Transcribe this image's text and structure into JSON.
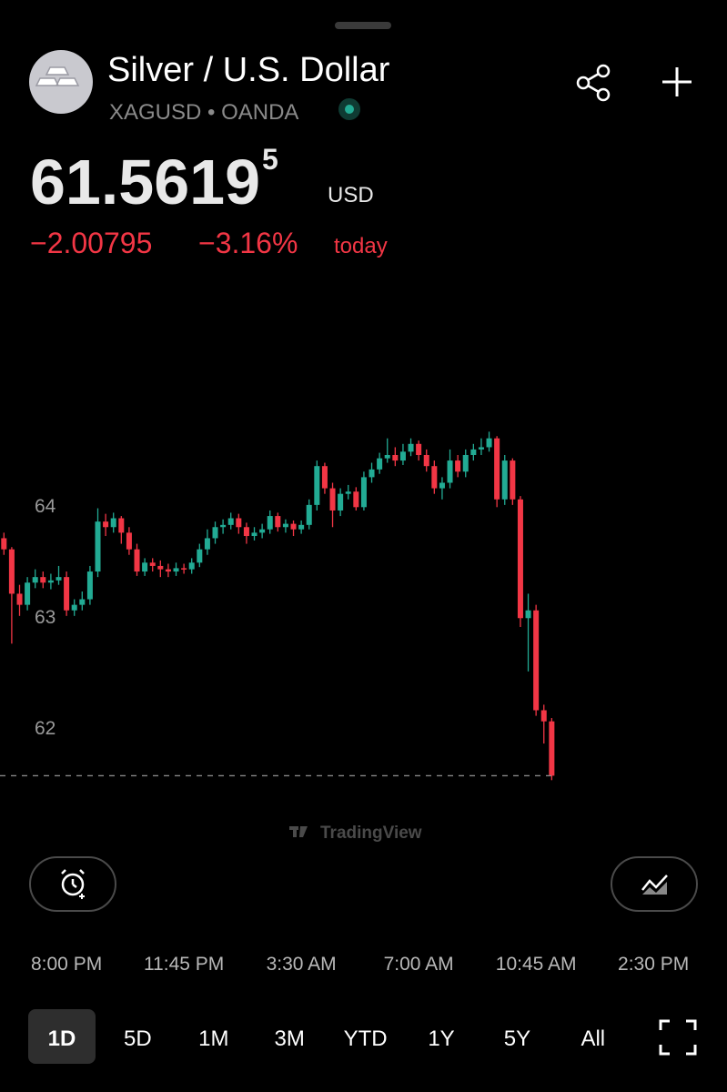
{
  "header": {
    "title": "Silver / U.S. Dollar",
    "symbol": "XAGUSD • OANDA",
    "price": "61.5619",
    "price_extra_digit": "5",
    "currency": "USD",
    "change": "−2.00795",
    "change_percent": "−3.16%",
    "period": "today"
  },
  "chart_data": {
    "type": "candlestick",
    "up_color": "#22ab94",
    "down_color": "#f23645",
    "categories": [
      null,
      null,
      null,
      null,
      null,
      null,
      null,
      null,
      null,
      null,
      null,
      null,
      null,
      null,
      null,
      null,
      null,
      null,
      null,
      null,
      null,
      null,
      null,
      null,
      null,
      null,
      null,
      null,
      null,
      null,
      null,
      null,
      null,
      null,
      null,
      null,
      null,
      null,
      null,
      null,
      null,
      null,
      null,
      null,
      null,
      null,
      null,
      null,
      null,
      null,
      null,
      null,
      null,
      null,
      null,
      null,
      null,
      null,
      null,
      null,
      null,
      null,
      null,
      null,
      null,
      null,
      null,
      null,
      null,
      null,
      null
    ],
    "ohlc": [
      [
        63.7,
        63.75,
        63.55,
        63.6
      ],
      [
        63.6,
        63.62,
        62.75,
        63.2
      ],
      [
        63.2,
        63.28,
        63.0,
        63.1
      ],
      [
        63.1,
        63.35,
        63.05,
        63.3
      ],
      [
        63.3,
        63.42,
        63.25,
        63.35
      ],
      [
        63.35,
        63.4,
        63.25,
        63.3
      ],
      [
        63.3,
        63.38,
        63.24,
        63.32
      ],
      [
        63.32,
        63.45,
        63.28,
        63.35
      ],
      [
        63.35,
        63.4,
        63.0,
        63.05
      ],
      [
        63.05,
        63.15,
        63.0,
        63.1
      ],
      [
        63.1,
        63.22,
        63.05,
        63.15
      ],
      [
        63.15,
        63.45,
        63.1,
        63.4
      ],
      [
        63.4,
        63.97,
        63.35,
        63.85
      ],
      [
        63.85,
        63.92,
        63.72,
        63.8
      ],
      [
        63.8,
        63.93,
        63.75,
        63.88
      ],
      [
        63.88,
        63.9,
        63.65,
        63.75
      ],
      [
        63.75,
        63.8,
        63.55,
        63.6
      ],
      [
        63.6,
        63.65,
        63.36,
        63.4
      ],
      [
        63.4,
        63.52,
        63.36,
        63.48
      ],
      [
        63.48,
        63.52,
        63.4,
        63.45
      ],
      [
        63.45,
        63.5,
        63.35,
        63.42
      ],
      [
        63.42,
        63.47,
        63.35,
        63.4
      ],
      [
        63.4,
        63.48,
        63.36,
        63.43
      ],
      [
        63.43,
        63.47,
        63.38,
        63.42
      ],
      [
        63.42,
        63.52,
        63.38,
        63.48
      ],
      [
        63.48,
        63.65,
        63.44,
        63.6
      ],
      [
        63.6,
        63.78,
        63.55,
        63.7
      ],
      [
        63.7,
        63.85,
        63.65,
        63.8
      ],
      [
        63.8,
        63.87,
        63.74,
        63.82
      ],
      [
        63.82,
        63.93,
        63.78,
        63.88
      ],
      [
        63.88,
        63.92,
        63.74,
        63.8
      ],
      [
        63.8,
        63.84,
        63.65,
        63.72
      ],
      [
        63.72,
        63.8,
        63.68,
        63.75
      ],
      [
        63.75,
        63.83,
        63.7,
        63.78
      ],
      [
        63.78,
        63.95,
        63.74,
        63.9
      ],
      [
        63.9,
        63.93,
        63.76,
        63.8
      ],
      [
        63.8,
        63.87,
        63.75,
        63.83
      ],
      [
        63.83,
        63.86,
        63.72,
        63.78
      ],
      [
        63.78,
        63.86,
        63.74,
        63.82
      ],
      [
        63.82,
        64.05,
        63.78,
        64.0
      ],
      [
        64.0,
        64.4,
        63.95,
        64.35
      ],
      [
        64.35,
        64.38,
        64.1,
        64.15
      ],
      [
        64.15,
        64.2,
        63.8,
        63.95
      ],
      [
        63.95,
        64.15,
        63.9,
        64.1
      ],
      [
        64.1,
        64.18,
        64.05,
        64.12
      ],
      [
        64.12,
        64.16,
        63.95,
        63.98
      ],
      [
        63.98,
        64.3,
        63.95,
        64.25
      ],
      [
        64.25,
        64.38,
        64.2,
        64.32
      ],
      [
        64.32,
        64.47,
        64.28,
        64.42
      ],
      [
        64.42,
        64.6,
        64.38,
        64.45
      ],
      [
        64.45,
        64.52,
        64.35,
        64.4
      ],
      [
        64.4,
        64.55,
        64.36,
        64.48
      ],
      [
        64.48,
        64.6,
        64.44,
        64.55
      ],
      [
        64.55,
        64.58,
        64.4,
        64.45
      ],
      [
        64.45,
        64.5,
        64.3,
        64.35
      ],
      [
        64.35,
        64.4,
        64.1,
        64.15
      ],
      [
        64.15,
        64.25,
        64.05,
        64.2
      ],
      [
        64.2,
        64.5,
        64.15,
        64.4
      ],
      [
        64.4,
        64.45,
        64.25,
        64.3
      ],
      [
        64.3,
        64.5,
        64.25,
        64.45
      ],
      [
        64.45,
        64.55,
        64.4,
        64.5
      ],
      [
        64.5,
        64.6,
        64.45,
        64.52
      ],
      [
        64.52,
        64.66,
        64.48,
        64.6
      ],
      [
        64.6,
        64.62,
        63.98,
        64.05
      ],
      [
        64.05,
        64.45,
        64.0,
        64.4
      ],
      [
        64.4,
        64.42,
        64.0,
        64.05
      ],
      [
        64.05,
        64.08,
        62.9,
        62.98
      ],
      [
        62.98,
        63.2,
        62.5,
        63.05
      ],
      [
        63.05,
        63.1,
        62.1,
        62.15
      ],
      [
        62.15,
        62.2,
        61.85,
        62.05
      ],
      [
        62.05,
        62.08,
        61.52,
        61.56
      ]
    ],
    "ylim": [
      61.17,
      66.09
    ],
    "yticks": [
      62,
      63,
      64
    ],
    "xlim": [
      -0.5,
      92.4
    ],
    "xticks": [
      {
        "value": 8,
        "label": "8:00 PM"
      },
      {
        "value": 23,
        "label": "11:45 PM"
      },
      {
        "value": 38,
        "label": "3:30 AM"
      },
      {
        "value": 53,
        "label": "7:00 AM"
      },
      {
        "value": 68,
        "label": "10:45 AM"
      },
      {
        "value": 83,
        "label": "2:30 PM"
      }
    ],
    "price_line": true,
    "watermark": "TradingView"
  },
  "timeframes": {
    "options": [
      "1D",
      "5D",
      "1M",
      "3M",
      "YTD",
      "1Y",
      "5Y",
      "All"
    ],
    "selected": 0
  }
}
